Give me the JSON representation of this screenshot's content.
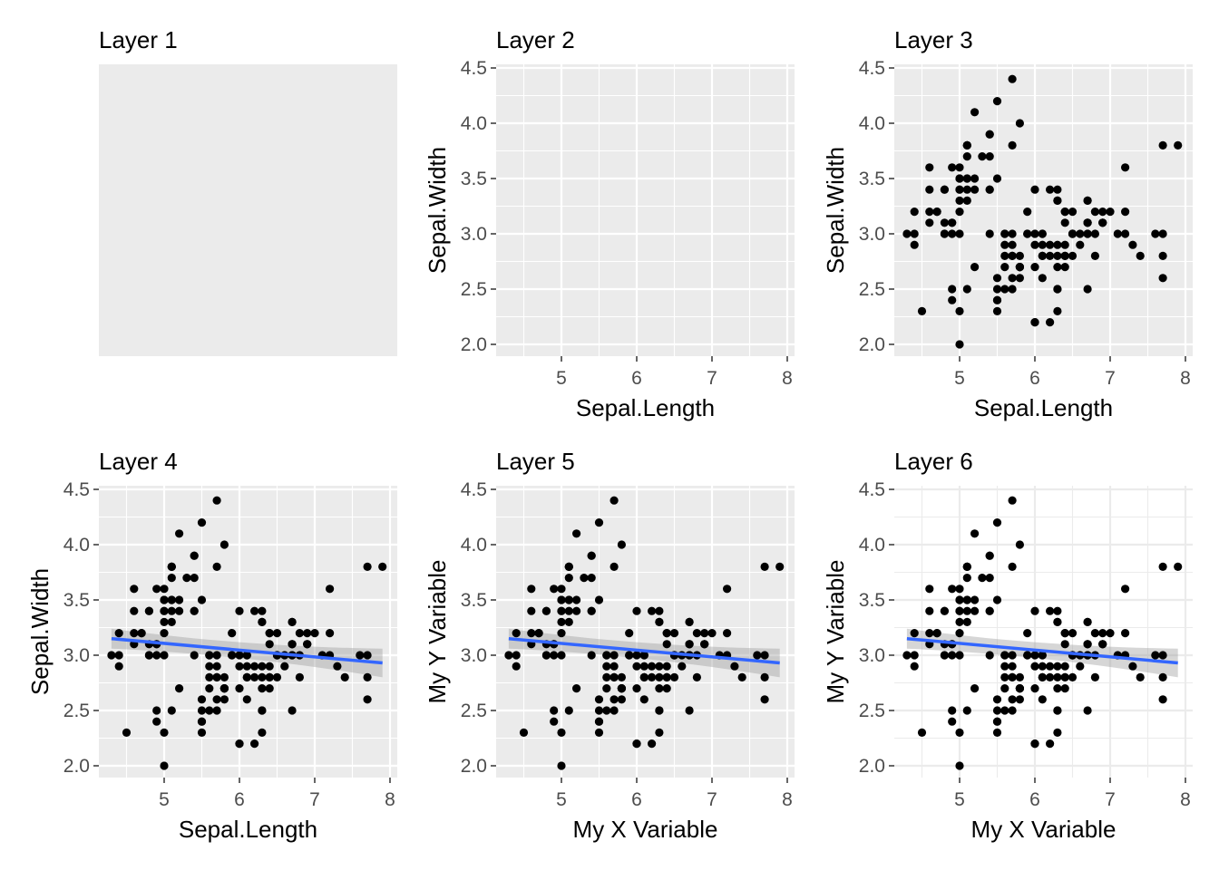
{
  "figure": {
    "point_color": "#000000",
    "panel_background": "#ebebeb",
    "grid_color": "#ffffff",
    "minimal_grid_color": "#ebebeb",
    "fit_color": "#3366ff",
    "ribbon_color": "#999999"
  },
  "points": {
    "x": [
      5.1,
      4.9,
      4.7,
      4.6,
      5.0,
      5.4,
      4.6,
      5.0,
      4.4,
      4.9,
      5.4,
      4.8,
      4.8,
      4.3,
      5.8,
      5.7,
      5.4,
      5.1,
      5.7,
      5.1,
      5.4,
      5.1,
      4.6,
      5.1,
      4.8,
      5.0,
      5.0,
      5.2,
      5.2,
      4.7,
      4.8,
      5.4,
      5.2,
      5.5,
      4.9,
      5.0,
      5.5,
      4.9,
      4.4,
      5.1,
      5.0,
      4.5,
      4.4,
      5.0,
      5.1,
      4.8,
      5.1,
      4.6,
      5.3,
      5.0,
      7.0,
      6.4,
      6.9,
      5.5,
      6.5,
      5.7,
      6.3,
      4.9,
      6.6,
      5.2,
      5.0,
      5.9,
      6.0,
      6.1,
      5.6,
      6.7,
      5.6,
      5.8,
      6.2,
      5.6,
      5.9,
      6.1,
      6.3,
      6.1,
      6.4,
      6.6,
      6.8,
      6.7,
      6.0,
      5.7,
      5.5,
      5.5,
      5.8,
      6.0,
      5.4,
      6.0,
      6.7,
      6.3,
      5.6,
      5.5,
      5.5,
      6.1,
      5.8,
      5.0,
      5.6,
      5.7,
      5.7,
      6.2,
      5.1,
      5.7,
      6.3,
      5.8,
      7.1,
      6.3,
      6.5,
      7.6,
      4.9,
      7.3,
      6.7,
      7.2,
      6.5,
      6.4,
      6.8,
      5.7,
      5.8,
      6.4,
      6.5,
      7.7,
      7.7,
      6.0,
      6.9,
      5.6,
      7.7,
      6.3,
      6.7,
      7.2,
      6.2,
      6.1,
      6.4,
      7.2,
      7.4,
      7.9,
      6.4,
      6.3,
      6.1,
      7.7,
      6.3,
      6.4,
      6.0,
      6.9,
      6.7,
      6.9,
      5.8,
      6.8,
      6.7,
      6.7,
      6.3,
      6.5,
      6.2,
      5.9
    ],
    "y": [
      3.5,
      3.0,
      3.2,
      3.1,
      3.6,
      3.9,
      3.4,
      3.4,
      2.9,
      3.1,
      3.7,
      3.4,
      3.0,
      3.0,
      4.0,
      4.4,
      3.9,
      3.5,
      3.8,
      3.8,
      3.4,
      3.7,
      3.6,
      3.3,
      3.4,
      3.0,
      3.4,
      3.5,
      3.4,
      3.2,
      3.1,
      3.4,
      4.1,
      4.2,
      3.1,
      3.2,
      3.5,
      3.6,
      3.0,
      3.4,
      3.5,
      2.3,
      3.2,
      3.5,
      3.8,
      3.0,
      3.8,
      3.2,
      3.7,
      3.3,
      3.2,
      3.2,
      3.1,
      2.3,
      2.8,
      2.8,
      3.3,
      2.4,
      2.9,
      2.7,
      2.0,
      3.0,
      2.2,
      2.9,
      2.9,
      3.1,
      3.0,
      2.7,
      2.2,
      2.5,
      3.2,
      2.8,
      2.5,
      2.8,
      2.9,
      3.0,
      2.8,
      3.0,
      2.9,
      2.6,
      2.4,
      2.4,
      2.7,
      2.7,
      3.0,
      3.4,
      3.1,
      2.3,
      3.0,
      2.5,
      2.6,
      3.0,
      2.6,
      2.3,
      2.7,
      3.0,
      2.9,
      2.9,
      2.5,
      2.8,
      3.3,
      2.7,
      3.0,
      2.9,
      3.0,
      3.0,
      2.5,
      2.9,
      2.5,
      3.6,
      3.2,
      2.7,
      3.0,
      2.5,
      2.8,
      3.2,
      3.0,
      3.8,
      2.6,
      2.2,
      3.2,
      2.8,
      2.8,
      2.7,
      3.3,
      3.2,
      2.8,
      3.0,
      2.8,
      3.0,
      2.8,
      3.8,
      2.8,
      2.8,
      2.6,
      3.0,
      3.4,
      3.1,
      3.0,
      3.1,
      3.1,
      3.1,
      2.7,
      3.2,
      3.3,
      3.0,
      2.5,
      3.0,
      3.4,
      3.0
    ]
  },
  "fit": {
    "x_start": 4.3,
    "x_end": 7.9,
    "y_start": 3.15,
    "y_end": 2.93,
    "se_start": 0.09,
    "se_mid": 0.035,
    "se_end": 0.13
  },
  "panels": [
    {
      "title": "Layer 1",
      "xlabel": "",
      "ylabel": "",
      "show_axes": false,
      "show_points": false,
      "show_fit": false,
      "theme": "grey"
    },
    {
      "title": "Layer 2",
      "xlabel": "Sepal.Length",
      "ylabel": "Sepal.Width",
      "show_axes": true,
      "show_points": false,
      "show_fit": false,
      "theme": "grey"
    },
    {
      "title": "Layer 3",
      "xlabel": "Sepal.Length",
      "ylabel": "Sepal.Width",
      "show_axes": true,
      "show_points": true,
      "show_fit": false,
      "theme": "grey"
    },
    {
      "title": "Layer 4",
      "xlabel": "Sepal.Length",
      "ylabel": "Sepal.Width",
      "show_axes": true,
      "show_points": true,
      "show_fit": true,
      "theme": "grey"
    },
    {
      "title": "Layer 5",
      "xlabel": "My X Variable",
      "ylabel": "My Y Variable",
      "show_axes": true,
      "show_points": true,
      "show_fit": true,
      "theme": "grey"
    },
    {
      "title": "Layer 6",
      "xlabel": "My X Variable",
      "ylabel": "My Y Variable",
      "show_axes": true,
      "show_points": true,
      "show_fit": true,
      "theme": "minimal"
    }
  ],
  "chart_data": [
    {
      "type": "scatter",
      "title": "Layer 1",
      "xlabel": "",
      "ylabel": "",
      "series": []
    },
    {
      "type": "scatter",
      "title": "Layer 2",
      "xlabel": "Sepal.Length",
      "ylabel": "Sepal.Width",
      "xlim": [
        4.3,
        7.9
      ],
      "ylim": [
        2.0,
        4.4
      ],
      "x_ticks": [
        "5",
        "6",
        "7",
        "8"
      ],
      "y_ticks": [
        "2.0",
        "2.5",
        "3.0",
        "3.5",
        "4.0",
        "4.5"
      ],
      "series": []
    },
    {
      "type": "scatter",
      "title": "Layer 3",
      "xlabel": "Sepal.Length",
      "ylabel": "Sepal.Width",
      "xlim": [
        4.3,
        7.9
      ],
      "ylim": [
        2.0,
        4.4
      ],
      "x_ticks": [
        "5",
        "6",
        "7",
        "8"
      ],
      "y_ticks": [
        "2.0",
        "2.5",
        "3.0",
        "3.5",
        "4.0",
        "4.5"
      ],
      "series": [
        "points"
      ]
    },
    {
      "type": "scatter",
      "title": "Layer 4",
      "xlabel": "Sepal.Length",
      "ylabel": "Sepal.Width",
      "xlim": [
        4.3,
        7.9
      ],
      "ylim": [
        2.0,
        4.4
      ],
      "x_ticks": [
        "5",
        "6",
        "7",
        "8"
      ],
      "y_ticks": [
        "2.0",
        "2.5",
        "3.0",
        "3.5",
        "4.0",
        "4.5"
      ],
      "series": [
        "points",
        "linear fit with confidence band"
      ]
    },
    {
      "type": "scatter",
      "title": "Layer 5",
      "xlabel": "My X Variable",
      "ylabel": "My Y Variable",
      "xlim": [
        4.3,
        7.9
      ],
      "ylim": [
        2.0,
        4.4
      ],
      "x_ticks": [
        "5",
        "6",
        "7",
        "8"
      ],
      "y_ticks": [
        "2.0",
        "2.5",
        "3.0",
        "3.5",
        "4.0",
        "4.5"
      ],
      "series": [
        "points",
        "linear fit with confidence band"
      ]
    },
    {
      "type": "scatter",
      "title": "Layer 6",
      "xlabel": "My X Variable",
      "ylabel": "My Y Variable",
      "xlim": [
        4.3,
        7.9
      ],
      "ylim": [
        2.0,
        4.4
      ],
      "x_ticks": [
        "5",
        "6",
        "7",
        "8"
      ],
      "y_ticks": [
        "2.0",
        "2.5",
        "3.0",
        "3.5",
        "4.0",
        "4.5"
      ],
      "series": [
        "points",
        "linear fit with confidence band"
      ],
      "grid": "minimal theme"
    }
  ],
  "axes": {
    "x_ticks": [
      5,
      6,
      7,
      8
    ],
    "x_tick_labels": [
      "5",
      "6",
      "7",
      "8"
    ],
    "y_ticks": [
      2.0,
      2.5,
      3.0,
      3.5,
      4.0,
      4.5
    ],
    "y_tick_labels": [
      "2.0",
      "2.5",
      "3.0",
      "3.5",
      "4.0",
      "4.5"
    ],
    "x_minor": [
      4.5,
      5.5,
      6.5,
      7.5
    ],
    "y_minor": [
      2.25,
      2.75,
      3.25,
      3.75,
      4.25
    ]
  }
}
